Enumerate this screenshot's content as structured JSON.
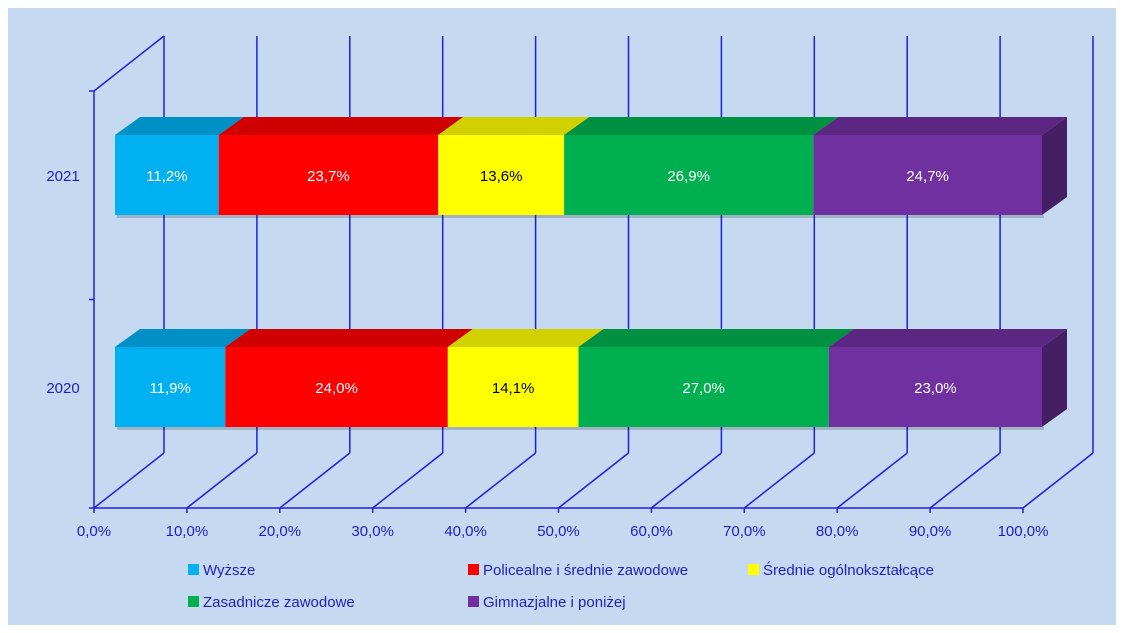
{
  "chart_data": {
    "type": "bar",
    "orientation": "horizontal",
    "stacked": "100%",
    "style": "3d",
    "categories": [
      "2021",
      "2020"
    ],
    "series": [
      {
        "name": "Wyższe",
        "color": "#00b0f0",
        "values": [
          11.2,
          11.9
        ],
        "labels": [
          "11,2%",
          "11,9%"
        ],
        "label_color": "#ffffff"
      },
      {
        "name": "Policealne i średnie zawodowe",
        "color": "#ff0000",
        "values": [
          23.7,
          24.0
        ],
        "labels": [
          "23,7%",
          "24,0%"
        ],
        "label_color": "#ffffff"
      },
      {
        "name": "Średnie ogólnokształcące",
        "color": "#ffff00",
        "values": [
          13.6,
          14.1
        ],
        "labels": [
          "13,6%",
          "14,1%"
        ],
        "label_color": "#000000"
      },
      {
        "name": "Zasadnicze zawodowe",
        "color": "#00b050",
        "values": [
          26.9,
          27.0
        ],
        "labels": [
          "26,9%",
          "27,0%"
        ],
        "label_color": "#ffffff"
      },
      {
        "name": "Gimnazjalne i poniżej",
        "color": "#7030a0",
        "values": [
          24.7,
          23.0
        ],
        "labels": [
          "24,7%",
          "23,0%"
        ],
        "label_color": "#ffffff"
      }
    ],
    "x_ticks": [
      "0,0%",
      "10,0%",
      "20,0%",
      "30,0%",
      "40,0%",
      "50,0%",
      "60,0%",
      "70,0%",
      "80,0%",
      "90,0%",
      "100,0%"
    ],
    "xlim": [
      0,
      100
    ],
    "grid": true,
    "legend_position": "bottom",
    "background": "#c5d9f1",
    "axis_color": "#1f1fe0",
    "title": "",
    "xlabel": "",
    "ylabel": ""
  }
}
